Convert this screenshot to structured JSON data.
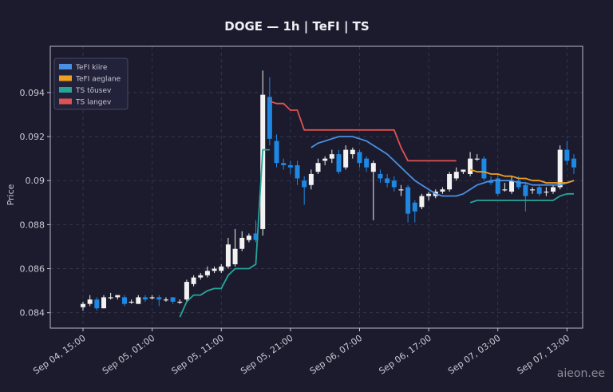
{
  "chart_data": {
    "type": "candlestick",
    "title": "DOGE — 1h  |  TeFI  |  TS",
    "y_label": "Price",
    "watermark": "aieon.ee",
    "x": [
      "Sep 04, 15:00",
      null,
      null,
      null,
      null,
      null,
      null,
      null,
      null,
      null,
      "Sep 05, 01:00",
      null,
      null,
      null,
      null,
      null,
      null,
      null,
      null,
      null,
      "Sep 05, 11:00",
      null,
      null,
      null,
      null,
      null,
      null,
      null,
      null,
      null,
      "Sep 05, 21:00",
      null,
      null,
      null,
      null,
      null,
      null,
      null,
      null,
      null,
      "Sep 06, 07:00",
      null,
      null,
      null,
      null,
      null,
      null,
      null,
      null,
      null,
      "Sep 06, 17:00",
      null,
      null,
      null,
      null,
      null,
      null,
      null,
      null,
      null,
      "Sep 07, 03:00",
      null,
      null,
      null,
      null,
      null,
      null,
      null,
      null,
      null,
      "Sep 07, 13:00",
      null
    ],
    "open": [
      0.08425,
      0.0844,
      0.0846,
      0.0842,
      0.0847,
      0.0847,
      0.0847,
      0.0845,
      0.0844,
      0.0847,
      0.0847,
      0.0847,
      0.0846,
      0.0847,
      0.0845,
      0.0846,
      0.0853,
      0.0856,
      0.0857,
      0.0859,
      0.0859,
      0.0861,
      0.0862,
      0.0869,
      0.0873,
      0.0876,
      0.0878,
      0.0938,
      0.0918,
      0.0908,
      0.0907,
      0.0907,
      0.09,
      0.0898,
      0.0904,
      0.0909,
      0.091,
      0.0912,
      0.0906,
      0.0912,
      0.0913,
      0.091,
      0.0904,
      0.0903,
      0.0901,
      0.09,
      0.0896,
      0.0897,
      0.089,
      0.0888,
      0.0893,
      0.0893,
      0.0895,
      0.0896,
      0.0901,
      0.0904,
      0.0903,
      0.091,
      0.091,
      0.09,
      0.0901,
      0.0896,
      0.0895,
      0.09,
      0.0898,
      0.0896,
      0.0897,
      0.0895,
      0.0895,
      0.0897,
      0.0914,
      0.091
    ],
    "high": [
      0.0845,
      0.0848,
      0.0847,
      0.0848,
      0.0849,
      0.0848,
      0.0848,
      0.0846,
      0.0848,
      0.0848,
      0.0848,
      0.0848,
      0.0847,
      0.0847,
      0.0846,
      0.0855,
      0.0857,
      0.0858,
      0.0861,
      0.0861,
      0.0862,
      0.0874,
      0.0878,
      0.0877,
      0.0876,
      0.0882,
      0.095,
      0.0947,
      0.0921,
      0.091,
      0.0909,
      0.0909,
      0.0902,
      0.0905,
      0.091,
      0.0911,
      0.0914,
      0.0914,
      0.0916,
      0.0915,
      0.0914,
      0.0911,
      0.0909,
      0.0905,
      0.0903,
      0.0902,
      0.0898,
      0.0898,
      0.0891,
      0.0894,
      0.0895,
      0.0896,
      0.0897,
      0.0904,
      0.0906,
      0.0905,
      0.0913,
      0.0912,
      0.0911,
      0.0902,
      0.0903,
      0.0899,
      0.0902,
      0.0902,
      0.0899,
      0.0897,
      0.0898,
      0.0897,
      0.0898,
      0.0916,
      0.0918,
      0.0912
    ],
    "low": [
      0.0841,
      0.0843,
      0.0841,
      0.0842,
      0.0846,
      0.0846,
      0.0843,
      0.0844,
      0.0844,
      0.0845,
      0.0846,
      0.0843,
      0.0845,
      0.0844,
      0.0844,
      0.0845,
      0.0852,
      0.0855,
      0.0856,
      0.0858,
      0.0858,
      0.086,
      0.0861,
      0.0868,
      0.0872,
      0.0872,
      0.0875,
      0.0916,
      0.0906,
      0.0905,
      0.0903,
      0.0898,
      0.0889,
      0.0896,
      0.0903,
      0.0907,
      0.0908,
      0.0903,
      0.0905,
      0.091,
      0.0906,
      0.0904,
      0.0882,
      0.0899,
      0.0897,
      0.0895,
      0.0893,
      0.0881,
      0.0881,
      0.0887,
      0.0891,
      0.0892,
      0.0894,
      0.0895,
      0.09,
      0.0903,
      0.0902,
      0.0909,
      0.09,
      0.0898,
      0.0893,
      0.0895,
      0.0894,
      0.0896,
      0.0886,
      0.0894,
      0.0893,
      0.0893,
      0.0894,
      0.0896,
      0.0907,
      0.0903
    ],
    "close": [
      0.0844,
      0.0846,
      0.0842,
      0.0847,
      0.0847,
      0.0848,
      0.0844,
      0.0845,
      0.0847,
      0.0846,
      0.0847,
      0.0846,
      0.0846,
      0.0845,
      0.0845,
      0.0854,
      0.0856,
      0.0857,
      0.0859,
      0.086,
      0.0861,
      0.0871,
      0.0869,
      0.0874,
      0.0875,
      0.0873,
      0.0939,
      0.0919,
      0.0908,
      0.0907,
      0.0906,
      0.0901,
      0.0897,
      0.0903,
      0.0908,
      0.091,
      0.0912,
      0.0904,
      0.0914,
      0.0914,
      0.0908,
      0.0906,
      0.0908,
      0.0901,
      0.0899,
      0.0897,
      0.0896,
      0.0885,
      0.0886,
      0.0893,
      0.0894,
      0.0895,
      0.0896,
      0.0903,
      0.0904,
      0.0905,
      0.091,
      0.091,
      0.0901,
      0.0899,
      0.0894,
      0.0896,
      0.09,
      0.0897,
      0.0893,
      0.0896,
      0.0894,
      0.0895,
      0.0897,
      0.0914,
      0.0909,
      0.0906
    ],
    "up_color": "#f2f2f2",
    "down_color": "#1e88e5",
    "series": [
      {
        "name": "TeFI kiire",
        "color": "#4a90e2",
        "values": [
          null,
          null,
          null,
          null,
          null,
          null,
          null,
          null,
          null,
          null,
          null,
          null,
          null,
          null,
          null,
          null,
          null,
          null,
          null,
          null,
          null,
          null,
          null,
          null,
          null,
          null,
          null,
          null,
          null,
          null,
          null,
          null,
          null,
          0.0915,
          0.0917,
          0.0918,
          0.0919,
          0.092,
          0.092,
          0.092,
          0.0919,
          0.0918,
          0.0916,
          0.0914,
          0.0912,
          0.0909,
          0.0906,
          0.0903,
          0.09,
          0.0898,
          0.0896,
          0.0894,
          0.0893,
          0.0893,
          0.0893,
          0.0894,
          0.0896,
          0.0898,
          0.0899,
          0.09,
          0.09,
          0.09,
          0.09,
          0.0899,
          0.0899,
          0.0898,
          0.0898,
          0.0898,
          0.0898,
          0.0898,
          0.0899,
          0.09
        ]
      },
      {
        "name": "TeFI aeglane",
        "color": "#f0a020",
        "values": [
          null,
          null,
          null,
          null,
          null,
          null,
          null,
          null,
          null,
          null,
          null,
          null,
          null,
          null,
          null,
          null,
          null,
          null,
          null,
          null,
          null,
          null,
          null,
          null,
          null,
          null,
          null,
          null,
          null,
          null,
          null,
          null,
          null,
          null,
          null,
          null,
          null,
          null,
          null,
          null,
          null,
          null,
          null,
          null,
          null,
          null,
          null,
          null,
          null,
          null,
          null,
          null,
          null,
          null,
          null,
          null,
          0.0905,
          0.0904,
          0.0904,
          0.0903,
          0.0903,
          0.0902,
          0.0902,
          0.0901,
          0.0901,
          0.09,
          0.09,
          0.0899,
          0.0899,
          0.0899,
          0.0899,
          0.09
        ]
      },
      {
        "name": "TS tõusev",
        "color": "#26a69a",
        "values": [
          null,
          null,
          null,
          null,
          null,
          null,
          null,
          null,
          null,
          null,
          null,
          null,
          null,
          null,
          0.0838,
          0.0845,
          0.0848,
          0.0848,
          0.085,
          0.0851,
          0.0851,
          0.0857,
          0.086,
          0.086,
          0.086,
          0.0862,
          0.0914,
          0.0914,
          null,
          null,
          null,
          null,
          null,
          null,
          null,
          null,
          null,
          null,
          null,
          null,
          null,
          null,
          null,
          null,
          null,
          null,
          null,
          null,
          null,
          null,
          null,
          null,
          null,
          null,
          null,
          null,
          0.089,
          0.0891,
          0.0891,
          0.0891,
          0.0891,
          0.0891,
          0.0891,
          0.0891,
          0.0891,
          0.0891,
          0.0891,
          0.0891,
          0.0891,
          0.0893,
          0.0894,
          0.0894
        ]
      },
      {
        "name": "TS langev",
        "color": "#e05252",
        "values": [
          null,
          null,
          null,
          null,
          null,
          null,
          null,
          null,
          null,
          null,
          null,
          null,
          null,
          null,
          null,
          null,
          null,
          null,
          null,
          null,
          null,
          null,
          null,
          null,
          null,
          null,
          null,
          0.0936,
          0.0935,
          0.0935,
          0.0932,
          0.0932,
          0.0923,
          0.0923,
          0.0923,
          0.0923,
          0.0923,
          0.0923,
          0.0923,
          0.0923,
          0.0923,
          0.0923,
          0.0923,
          0.0923,
          0.0923,
          0.0923,
          0.0915,
          0.0909,
          0.0909,
          0.0909,
          0.0909,
          0.0909,
          0.0909,
          0.0909,
          0.0909,
          null,
          null,
          null,
          null,
          null,
          null,
          null,
          null,
          null,
          null,
          null,
          null,
          null,
          null,
          null,
          null,
          null
        ]
      }
    ],
    "ylim": [
      0.0833,
      0.0961
    ],
    "yticks": [
      0.084,
      0.086,
      0.088,
      0.09,
      0.092,
      0.094
    ],
    "grid": true,
    "legend": "upper left"
  }
}
